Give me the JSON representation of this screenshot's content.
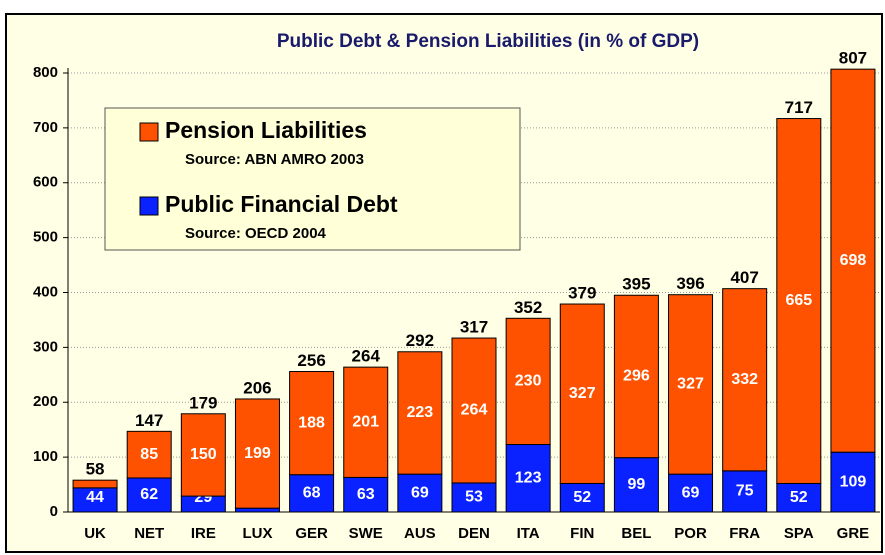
{
  "chart_data": {
    "type": "stacked_bar",
    "title": "Public Debt & Pension Liabilities (in % of GDP)",
    "categories": [
      "UK",
      "NET",
      "IRE",
      "LUX",
      "GER",
      "SWE",
      "AUS",
      "DEN",
      "ITA",
      "FIN",
      "BEL",
      "POR",
      "FRA",
      "SPA",
      "GRE"
    ],
    "series": [
      {
        "name": "Public Financial Debt",
        "source": "Source: OECD 2004",
        "color": "#0a22ff",
        "values": [
          44,
          62,
          29,
          7,
          68,
          63,
          69,
          53,
          123,
          52,
          99,
          69,
          75,
          52,
          109
        ]
      },
      {
        "name": "Pension Liabilities",
        "source": "Source: ABN AMRO 2003",
        "color": "#ff5200",
        "values": [
          14,
          85,
          150,
          199,
          188,
          201,
          223,
          264,
          230,
          327,
          296,
          327,
          332,
          665,
          698
        ],
        "value_labels": [
          null,
          "85",
          "150",
          "199",
          "188",
          "201",
          "223",
          "264",
          "230",
          "327",
          "296",
          "327",
          "332",
          "665",
          "698"
        ]
      }
    ],
    "totals": [
      58,
      147,
      179,
      206,
      256,
      264,
      292,
      317,
      352,
      379,
      395,
      396,
      407,
      717,
      807
    ],
    "ylim": [
      0,
      800
    ],
    "yticks": [
      0,
      100,
      200,
      300,
      400,
      500,
      600,
      700,
      800
    ],
    "grid": true
  }
}
